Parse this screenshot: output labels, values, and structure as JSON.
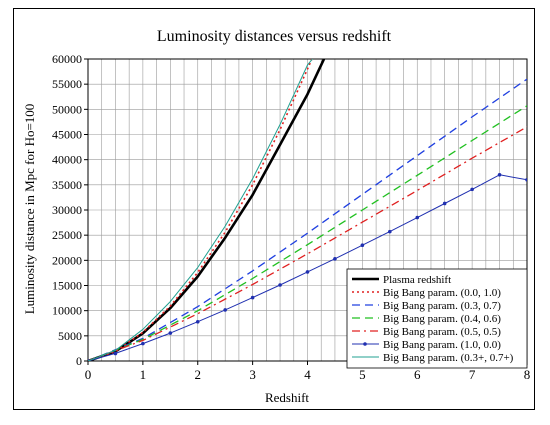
{
  "chart_data": {
    "type": "line",
    "title": "Luminosity distances versus redshift",
    "xlabel": "Redshift",
    "ylabel": "Luminosity distance  in Mpc for Ho=100",
    "xlim": [
      0,
      8
    ],
    "ylim": [
      0,
      60000
    ],
    "xticks": [
      0,
      1,
      2,
      3,
      4,
      5,
      6,
      7,
      8
    ],
    "yticks": [
      0,
      5000,
      10000,
      15000,
      20000,
      25000,
      30000,
      35000,
      40000,
      45000,
      50000,
      55000,
      60000
    ],
    "grid": true,
    "legend_position": "bottom-right",
    "series": [
      {
        "name": "Plasma redshift",
        "color": "#000000",
        "style": "solid-thick",
        "x": [
          0,
          0.5,
          1,
          1.5,
          2,
          2.5,
          3,
          3.5,
          4,
          4.3
        ],
        "y": [
          0,
          1900,
          5500,
          10500,
          16800,
          24500,
          33000,
          43000,
          53000,
          60000
        ]
      },
      {
        "name": "Big Bang param. (0.0, 1.0)",
        "color": "#e02020",
        "style": "dotted",
        "x": [
          0,
          0.5,
          1,
          1.5,
          2,
          2.5,
          3,
          3.5,
          4,
          4.1
        ],
        "y": [
          0,
          1900,
          5700,
          10900,
          17600,
          25600,
          35000,
          46000,
          58000,
          60500
        ]
      },
      {
        "name": "Big Bang param. (0.3, 0.7)",
        "color": "#2040e0",
        "style": "dashed",
        "x": [
          0,
          1,
          2,
          3,
          4,
          5,
          6,
          7,
          8
        ],
        "y": [
          0,
          4500,
          10800,
          17900,
          25400,
          33100,
          40800,
          48500,
          56000
        ]
      },
      {
        "name": "Big Bang param. (0.4, 0.6)",
        "color": "#20c020",
        "style": "dashed",
        "x": [
          0,
          1,
          2,
          3,
          4,
          5,
          6,
          7,
          8
        ],
        "y": [
          0,
          4300,
          10000,
          16400,
          23100,
          30000,
          36900,
          43800,
          50700
        ]
      },
      {
        "name": "Big Bang param. (0.5, 0.5)",
        "color": "#e02020",
        "style": "dashdot",
        "x": [
          0,
          1,
          2,
          3,
          4,
          5,
          6,
          7,
          8
        ],
        "y": [
          0,
          4100,
          9400,
          15200,
          21300,
          27600,
          33900,
          40300,
          46500
        ]
      },
      {
        "name": "Big Bang param. (1.0, 0.0)",
        "color": "#2030b0",
        "style": "solid-markers",
        "x": [
          0,
          0.5,
          1,
          1.5,
          2,
          2.5,
          3,
          3.5,
          4,
          4.5,
          5,
          5.5,
          6,
          6.5,
          7,
          7.5,
          8
        ],
        "y": [
          0,
          1500,
          3450,
          5550,
          7800,
          10150,
          12600,
          15100,
          17700,
          20300,
          23000,
          25700,
          28500,
          31300,
          34100,
          37000,
          36000
        ]
      },
      {
        "name": "Big Bang param. (0.3+, 0.7+)",
        "color": "#20a090",
        "style": "solid",
        "x": [
          0,
          0.5,
          1,
          1.5,
          2,
          2.5,
          3,
          3.5,
          4,
          4.2
        ],
        "y": [
          0,
          2100,
          6300,
          11800,
          18600,
          26800,
          36200,
          47000,
          58800,
          61500
        ]
      }
    ]
  }
}
